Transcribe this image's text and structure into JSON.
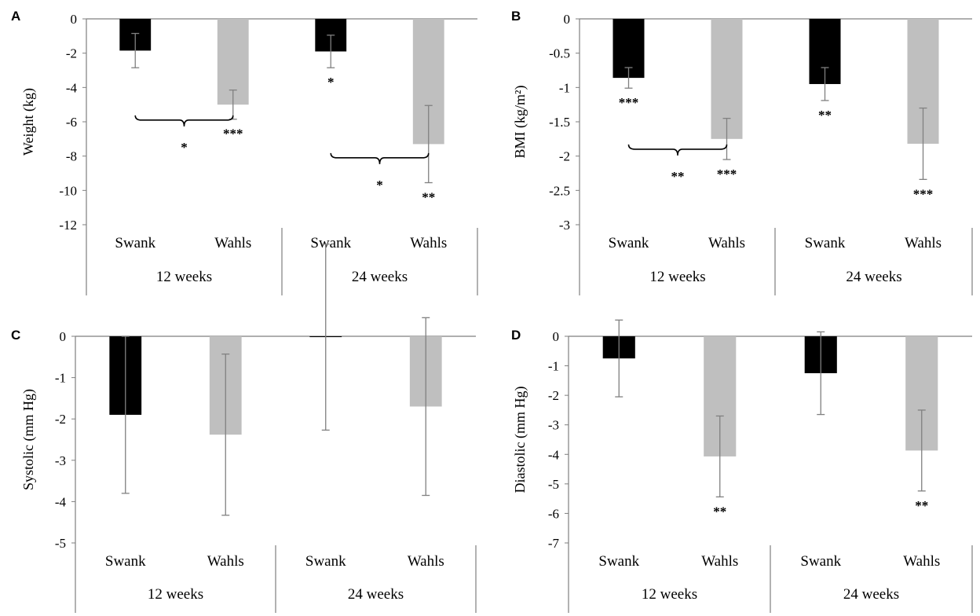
{
  "figure": {
    "panel_letters": [
      "A",
      "B",
      "C",
      "D"
    ]
  },
  "colors": {
    "swank": "#000000",
    "wahls": "#bfbfbf",
    "error_bar": "#808080",
    "axis": "#7f7f7f"
  },
  "chart_data": [
    {
      "panel": "A",
      "type": "bar",
      "ylabel": "Weight (kg)",
      "ylim": [
        -12,
        0
      ],
      "yticks": [
        0,
        -2,
        -4,
        -6,
        -8,
        -10,
        -12
      ],
      "groups": [
        "12 weeks",
        "24 weeks"
      ],
      "series": [
        {
          "name": "Swank",
          "color": "#000000",
          "values": [
            -1.85,
            -1.9
          ],
          "err": [
            1.0,
            0.95
          ],
          "sig": [
            "",
            "*"
          ]
        },
        {
          "name": "Wahls",
          "color": "#bfbfbf",
          "values": [
            -5.0,
            -7.3
          ],
          "err": [
            0.85,
            2.25
          ],
          "sig": [
            "***",
            "**"
          ]
        }
      ],
      "comparisons": [
        {
          "group": 0,
          "y": -5.9,
          "label": "*"
        },
        {
          "group": 1,
          "y": -8.1,
          "label": "*"
        }
      ]
    },
    {
      "panel": "B",
      "type": "bar",
      "ylabel": "BMI (kg/m²)",
      "ylim": [
        -3,
        0
      ],
      "yticks": [
        0,
        -0.5,
        -1,
        -1.5,
        -2,
        -2.5,
        -3
      ],
      "groups": [
        "12 weeks",
        "24 weeks"
      ],
      "series": [
        {
          "name": "Swank",
          "color": "#000000",
          "values": [
            -0.86,
            -0.95
          ],
          "err": [
            0.15,
            0.24
          ],
          "sig": [
            "***",
            "**"
          ]
        },
        {
          "name": "Wahls",
          "color": "#bfbfbf",
          "values": [
            -1.75,
            -1.82
          ],
          "err": [
            0.3,
            0.52
          ],
          "sig": [
            "***",
            "***"
          ]
        }
      ],
      "comparisons": [
        {
          "group": 0,
          "y": -1.9,
          "label": "**"
        }
      ]
    },
    {
      "panel": "C",
      "type": "bar",
      "ylabel": "Systolic (mm Hg)",
      "ylim": [
        -5,
        0
      ],
      "yticks": [
        0,
        -1,
        -2,
        -3,
        -4,
        -5
      ],
      "groups": [
        "12 weeks",
        "24 weeks"
      ],
      "series": [
        {
          "name": "Swank",
          "color": "#000000",
          "values": [
            -1.9,
            -0.02
          ],
          "err": [
            1.9,
            2.25
          ],
          "sig": [
            "",
            ""
          ]
        },
        {
          "name": "Wahls",
          "color": "#bfbfbf",
          "values": [
            -2.38,
            -1.7
          ],
          "err": [
            1.95,
            2.15
          ],
          "sig": [
            "",
            ""
          ]
        }
      ],
      "comparisons": []
    },
    {
      "panel": "D",
      "type": "bar",
      "ylabel": "Diastolic (mm Hg)",
      "ylim": [
        -7,
        0
      ],
      "yticks": [
        0,
        -1,
        -2,
        -3,
        -4,
        -5,
        -6,
        -7
      ],
      "groups": [
        "12 weeks",
        "24 weeks"
      ],
      "series": [
        {
          "name": "Swank",
          "color": "#000000",
          "values": [
            -0.75,
            -1.25
          ],
          "err": [
            1.3,
            1.4
          ],
          "sig": [
            "",
            ""
          ]
        },
        {
          "name": "Wahls",
          "color": "#bfbfbf",
          "values": [
            -4.07,
            -3.87
          ],
          "err": [
            1.37,
            1.37
          ],
          "sig": [
            "**",
            "**"
          ]
        }
      ],
      "comparisons": []
    }
  ]
}
